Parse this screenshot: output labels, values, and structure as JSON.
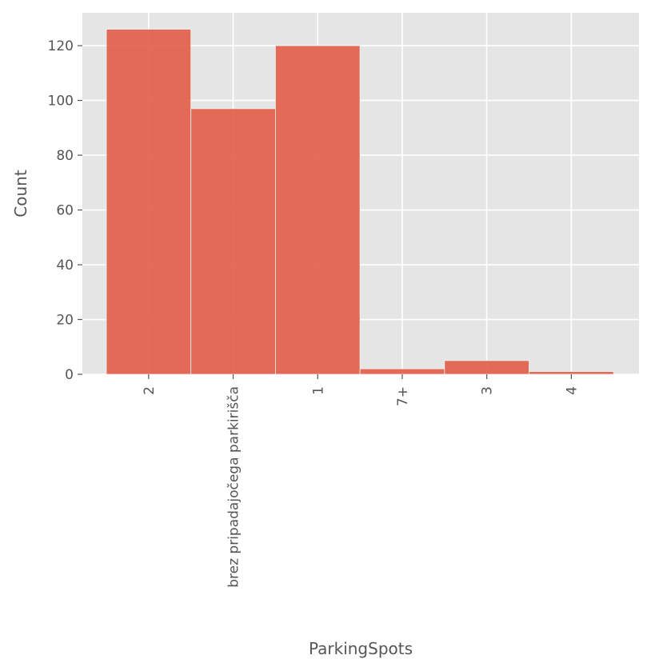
{
  "chart_data": {
    "type": "bar",
    "title": "",
    "xlabel": "ParkingSpots",
    "ylabel": "Count",
    "categories": [
      "2",
      "brez pripadajočega parkirišča",
      "1",
      "7+",
      "3",
      "4"
    ],
    "values": [
      126,
      97,
      120,
      2,
      5,
      1
    ],
    "ylim": [
      0,
      132
    ],
    "yticks": [
      0,
      20,
      40,
      60,
      80,
      100,
      120
    ],
    "grid": true,
    "colors": {
      "bar": "#e2604a",
      "bar_edge": "#f2f2f2",
      "plot_bg": "#e5e5e5",
      "grid": "#ffffff",
      "text": "#555555"
    }
  }
}
